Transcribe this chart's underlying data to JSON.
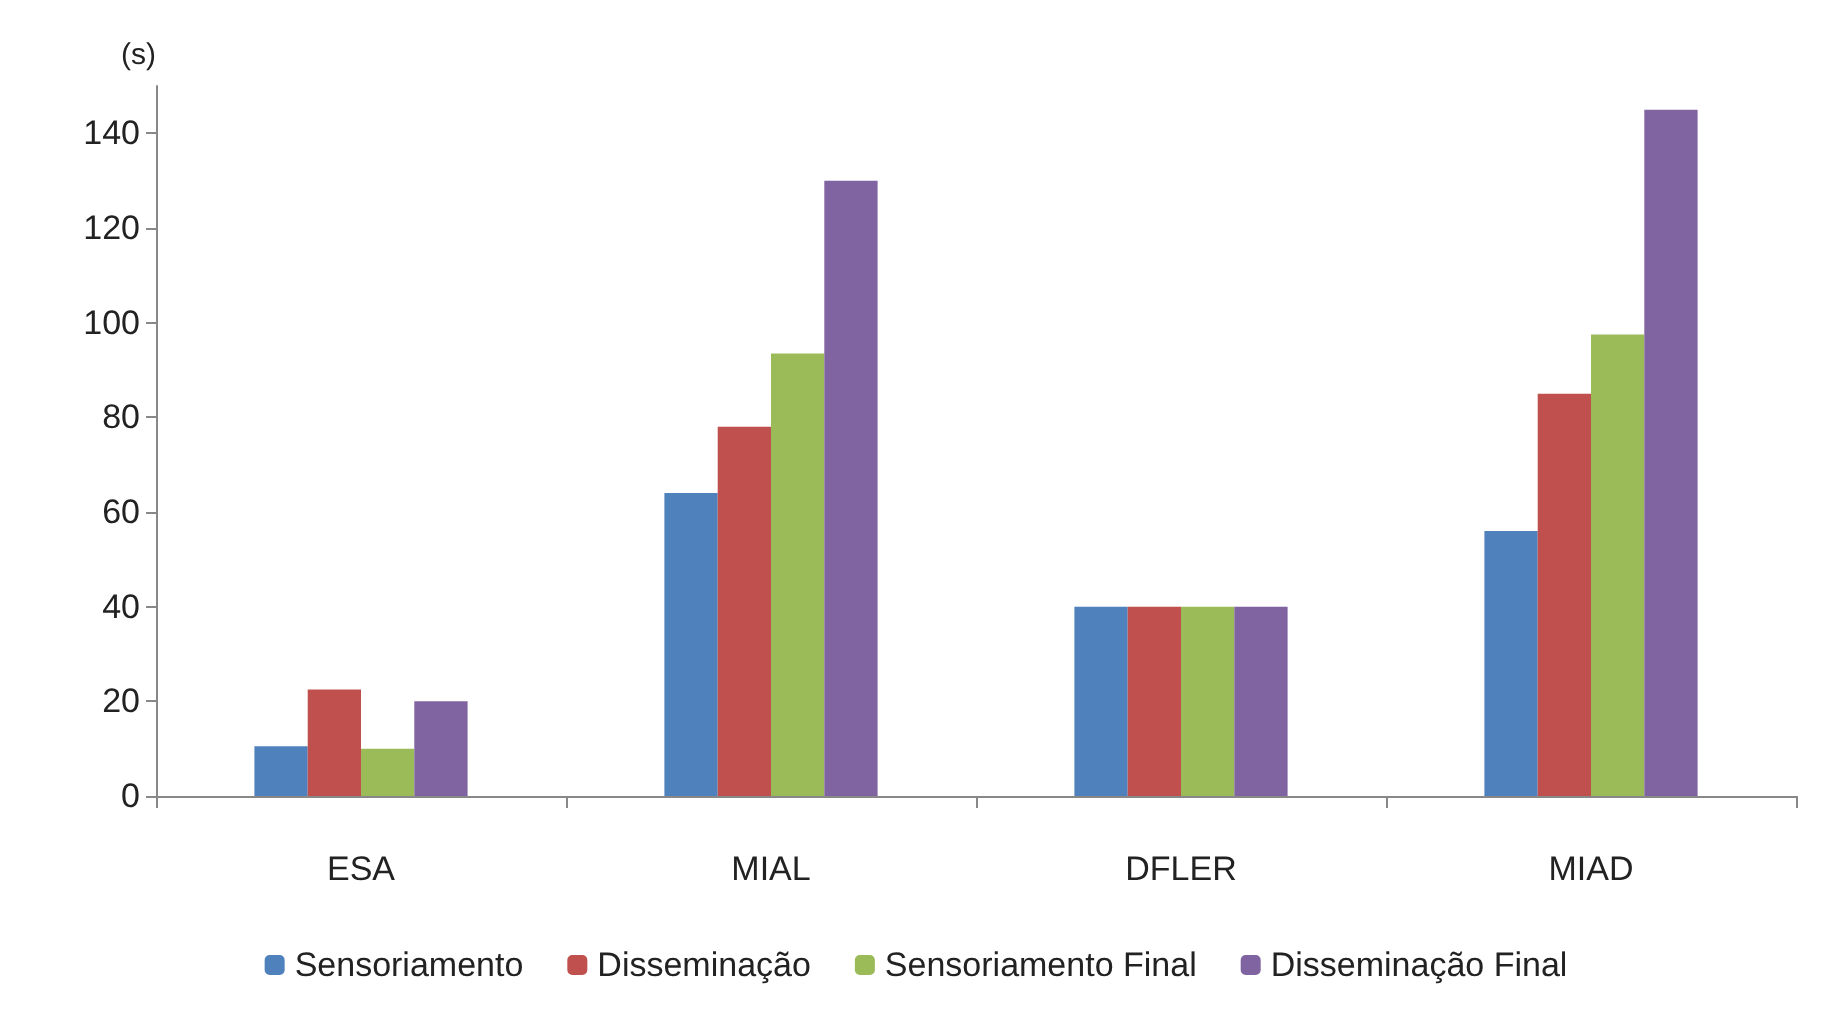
{
  "chart_data": {
    "type": "bar",
    "ylabel": "(s)",
    "categories": [
      "ESA",
      "MIAL",
      "DFLER",
      "MIAD"
    ],
    "series": [
      {
        "name": "Sensoriamento",
        "color": "#4f81bd",
        "values": [
          10.5,
          64,
          40,
          56
        ]
      },
      {
        "name": "Disseminação",
        "color": "#c0504d",
        "values": [
          22.5,
          78,
          40,
          85
        ]
      },
      {
        "name": "Sensoriamento Final",
        "color": "#9bbb59",
        "values": [
          10,
          93.5,
          40,
          97.5
        ]
      },
      {
        "name": "Disseminação Final",
        "color": "#8064a2",
        "values": [
          20,
          130,
          40,
          145
        ]
      }
    ],
    "ylim": [
      0,
      150
    ],
    "yticks": [
      0,
      20,
      40,
      60,
      80,
      100,
      120,
      140
    ],
    "grid": false,
    "legend": "bottom"
  }
}
